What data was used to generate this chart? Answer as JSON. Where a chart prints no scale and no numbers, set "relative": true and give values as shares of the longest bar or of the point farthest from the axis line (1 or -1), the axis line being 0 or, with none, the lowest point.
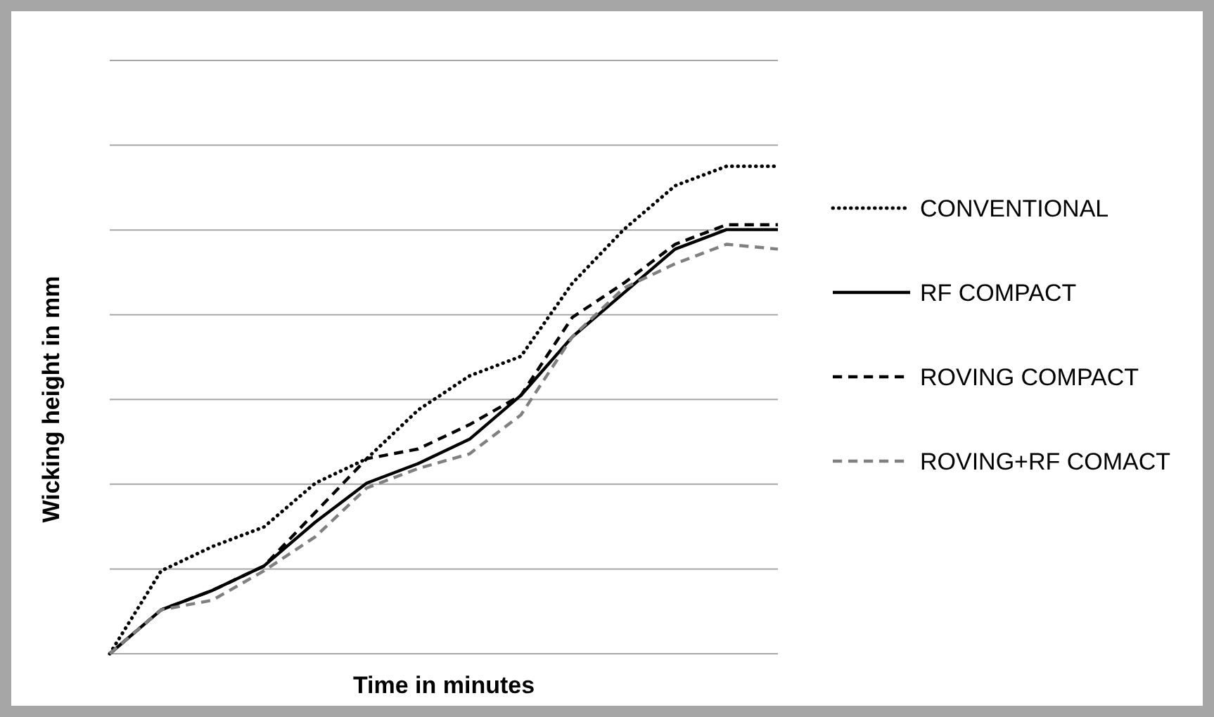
{
  "chart_data": {
    "type": "line",
    "relative": true,
    "xlabel": "Time in minutes",
    "ylabel": "Wicking height in mm",
    "categories": [
      null,
      null,
      null,
      null,
      null,
      null,
      null,
      null,
      null,
      null,
      null,
      null,
      null,
      null
    ],
    "grid": "y",
    "legend": "right",
    "marker": "none",
    "series": [
      {
        "name": "CONVENTIONAL",
        "color": "#000000",
        "line_style": "dotted",
        "values": [
          0,
          0.17,
          0.22,
          0.26,
          0.35,
          0.4,
          0.5,
          0.57,
          0.61,
          0.76,
          0.87,
          0.96,
          1,
          1
        ]
      },
      {
        "name": "RF COMPACT",
        "color": "#000000",
        "line_style": "solid",
        "values": [
          0,
          0.09,
          0.13,
          0.18,
          0.27,
          0.35,
          0.39,
          0.44,
          0.53,
          0.65,
          0.74,
          0.83,
          0.87,
          0.87
        ]
      },
      {
        "name": "ROVING COMPACT",
        "color": "#000000",
        "line_style": "dashed",
        "values": [
          0,
          0.09,
          0.13,
          0.18,
          0.29,
          0.4,
          0.42,
          0.47,
          0.53,
          0.69,
          0.76,
          0.84,
          0.88,
          0.88
        ]
      },
      {
        "name": "ROVING+RF COMACT",
        "color": "#808080",
        "line_style": "dashed",
        "values": [
          0,
          0.09,
          0.11,
          0.17,
          0.24,
          0.34,
          0.38,
          0.41,
          0.49,
          0.65,
          0.75,
          0.8,
          0.84,
          0.83
        ]
      }
    ]
  }
}
